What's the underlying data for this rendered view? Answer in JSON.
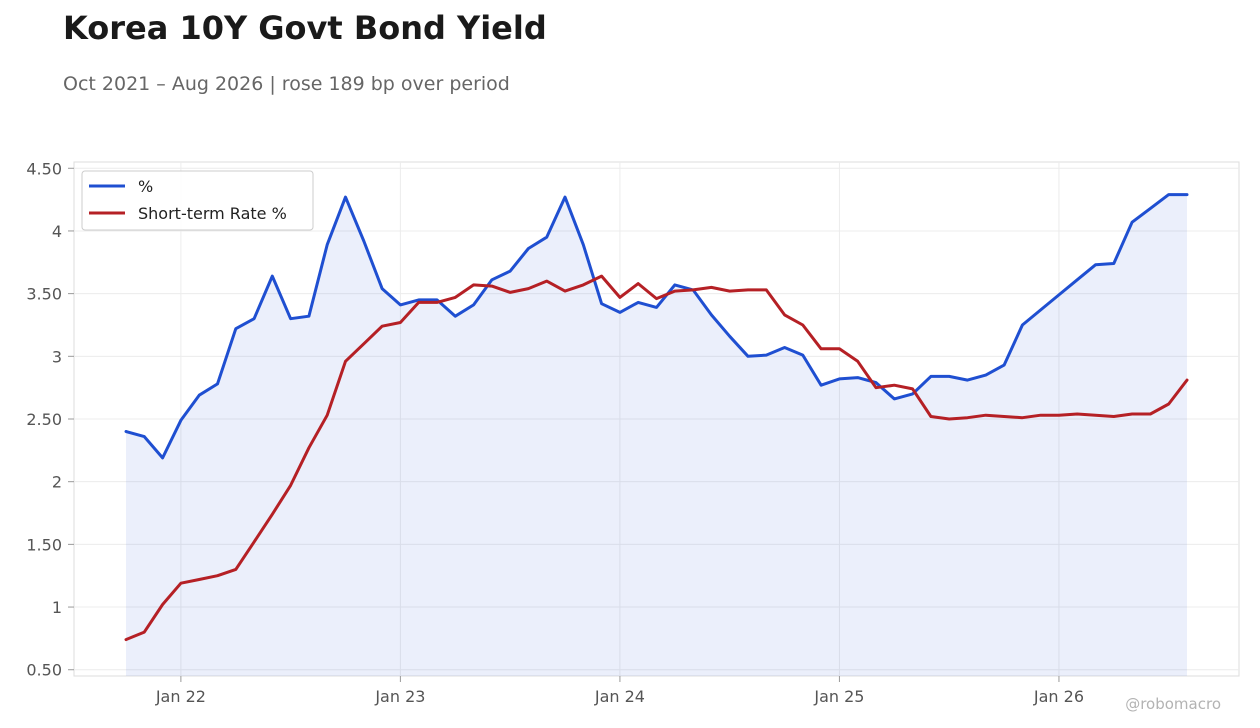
{
  "title": "Korea 10Y Govt Bond Yield",
  "subtitle": "Oct 2021 – Aug 2026 | rose 189 bp over period",
  "watermark": "@robomacro",
  "chart_data": {
    "type": "line",
    "title": "Korea 10Y Govt Bond Yield",
    "subtitle": "Oct 2021 – Aug 2026 | rose 189 bp over period",
    "xlabel": "",
    "ylabel": "",
    "ylim": [
      0.45,
      4.55
    ],
    "grid": true,
    "legend_position": "top-left",
    "x_tick_labels": [
      "Jan 22",
      "Jan 23",
      "Jan 24",
      "Jan 25",
      "Jan 26"
    ],
    "y_tick_labels": [
      "0.50",
      "1",
      "1.50",
      "2",
      "2.50",
      "3",
      "3.50",
      "4",
      "4.50"
    ],
    "y_ticks": [
      0.5,
      1,
      1.5,
      2,
      2.5,
      3,
      3.5,
      4,
      4.5
    ],
    "x": [
      "2021-10",
      "2021-11",
      "2021-12",
      "2022-01",
      "2022-02",
      "2022-03",
      "2022-04",
      "2022-05",
      "2022-06",
      "2022-07",
      "2022-08",
      "2022-09",
      "2022-10",
      "2022-11",
      "2022-12",
      "2023-01",
      "2023-02",
      "2023-03",
      "2023-04",
      "2023-05",
      "2023-06",
      "2023-07",
      "2023-08",
      "2023-09",
      "2023-10",
      "2023-11",
      "2023-12",
      "2024-01",
      "2024-02",
      "2024-03",
      "2024-04",
      "2024-05",
      "2024-06",
      "2024-07",
      "2024-08",
      "2024-09",
      "2024-10",
      "2024-11",
      "2024-12",
      "2025-01",
      "2025-02",
      "2025-03",
      "2025-04",
      "2025-05",
      "2025-06",
      "2025-07",
      "2025-08",
      "2025-09",
      "2025-10",
      "2025-11",
      "2025-12",
      "2026-01",
      "2026-02",
      "2026-03",
      "2026-04",
      "2026-05",
      "2026-06",
      "2026-07",
      "2026-08"
    ],
    "series": [
      {
        "name": "%",
        "color": "#1f4fd1",
        "fill": true,
        "values": [
          2.4,
          2.36,
          2.19,
          2.49,
          2.69,
          2.78,
          3.22,
          3.3,
          3.64,
          3.3,
          3.32,
          3.89,
          4.27,
          3.92,
          3.54,
          3.41,
          3.45,
          3.45,
          3.32,
          3.41,
          3.61,
          3.68,
          3.86,
          3.95,
          4.27,
          3.89,
          3.42,
          3.35,
          3.43,
          3.39,
          3.57,
          3.53,
          3.33,
          3.16,
          3.0,
          3.01,
          3.07,
          3.01,
          2.77,
          2.82,
          2.83,
          2.79,
          2.66,
          2.7,
          2.84,
          2.84,
          2.81,
          2.85,
          2.93,
          3.25,
          3.37,
          3.49,
          3.61,
          3.73,
          3.74,
          4.07,
          4.18,
          4.29,
          4.29
        ]
      },
      {
        "name": "Short-term Rate %",
        "color": "#b52025",
        "fill": false,
        "values": [
          0.74,
          0.8,
          1.02,
          1.19,
          1.22,
          1.25,
          1.3,
          1.52,
          1.74,
          1.97,
          2.27,
          2.53,
          2.96,
          3.1,
          3.24,
          3.27,
          3.43,
          3.43,
          3.47,
          3.57,
          3.56,
          3.51,
          3.54,
          3.6,
          3.52,
          3.57,
          3.64,
          3.47,
          3.58,
          3.46,
          3.52,
          3.53,
          3.55,
          3.52,
          3.53,
          3.53,
          3.33,
          3.25,
          3.06,
          3.06,
          2.96,
          2.75,
          2.77,
          2.74,
          2.52,
          2.5,
          2.51,
          2.53,
          2.52,
          2.51,
          2.53,
          2.53,
          2.54,
          2.53,
          2.52,
          2.54,
          2.54,
          2.62,
          2.81
        ]
      }
    ]
  }
}
